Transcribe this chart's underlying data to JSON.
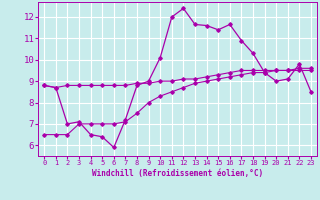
{
  "xlabel": "Windchill (Refroidissement éolien,°C)",
  "background_color": "#c8ecec",
  "line_color": "#aa00aa",
  "grid_color": "#ffffff",
  "xlim": [
    -0.5,
    23.5
  ],
  "ylim": [
    5.5,
    12.7
  ],
  "yticks": [
    6,
    7,
    8,
    9,
    10,
    11,
    12
  ],
  "xticks": [
    0,
    1,
    2,
    3,
    4,
    5,
    6,
    7,
    8,
    9,
    10,
    11,
    12,
    13,
    14,
    15,
    16,
    17,
    18,
    19,
    20,
    21,
    22,
    23
  ],
  "line1_x": [
    0,
    1,
    2,
    3,
    4,
    5,
    6,
    7,
    8,
    9,
    10,
    11,
    12,
    13,
    14,
    15,
    16,
    17,
    18,
    19,
    20,
    21,
    22,
    23
  ],
  "line1_y": [
    8.8,
    8.7,
    8.8,
    8.8,
    8.8,
    8.8,
    8.8,
    8.8,
    8.9,
    8.9,
    9.0,
    9.0,
    9.1,
    9.1,
    9.2,
    9.3,
    9.4,
    9.5,
    9.5,
    9.5,
    9.5,
    9.5,
    9.5,
    9.5
  ],
  "line2_x": [
    0,
    1,
    2,
    3,
    4,
    5,
    6,
    7,
    8,
    9,
    10,
    11,
    12,
    13,
    14,
    15,
    16,
    17,
    18,
    19,
    20,
    21,
    22,
    23
  ],
  "line2_y": [
    6.5,
    6.5,
    6.5,
    7.0,
    7.0,
    7.0,
    7.0,
    7.1,
    7.5,
    8.0,
    8.3,
    8.5,
    8.7,
    8.9,
    9.0,
    9.1,
    9.2,
    9.3,
    9.4,
    9.4,
    9.5,
    9.5,
    9.6,
    9.6
  ],
  "line3_x": [
    0,
    1,
    2,
    3,
    4,
    5,
    6,
    7,
    8,
    9,
    10,
    11,
    12,
    13,
    14,
    15,
    16,
    17,
    18,
    19,
    20,
    21,
    22,
    23
  ],
  "line3_y": [
    8.8,
    8.7,
    7.0,
    7.1,
    6.5,
    6.4,
    5.9,
    7.2,
    8.8,
    9.0,
    10.1,
    12.0,
    12.4,
    11.65,
    11.6,
    11.4,
    11.65,
    10.9,
    10.3,
    9.4,
    9.0,
    9.1,
    9.8,
    8.5
  ]
}
